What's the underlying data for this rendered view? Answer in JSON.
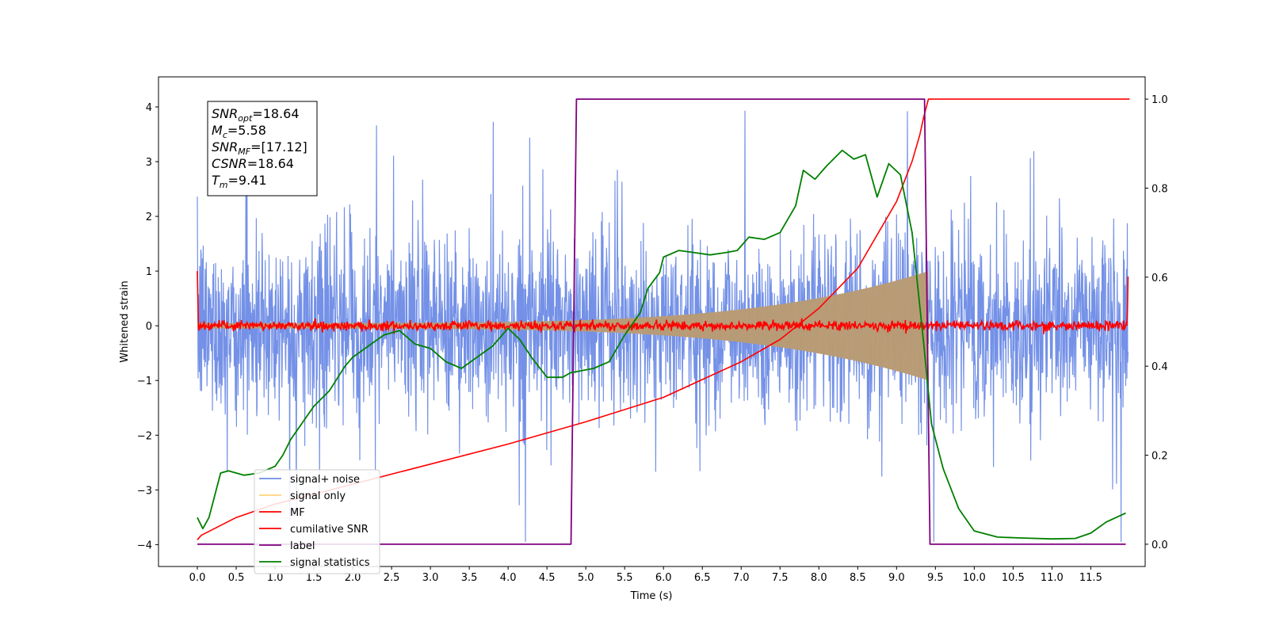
{
  "chart_data": {
    "type": "line",
    "xlabel": "Time (s)",
    "ylabel": "Whitened strain",
    "xlim": [
      -0.5,
      12.2
    ],
    "ylim_left": [
      -4.4,
      4.55
    ],
    "ylim_right": [
      -0.05,
      1.05
    ],
    "x_ticks": [
      0.0,
      0.5,
      1.0,
      1.5,
      2.0,
      2.5,
      3.0,
      3.5,
      4.0,
      4.5,
      5.0,
      5.5,
      6.0,
      6.5,
      7.0,
      7.5,
      8.0,
      8.5,
      9.0,
      9.5,
      10.0,
      10.5,
      11.0,
      11.5
    ],
    "x_tick_labels": [
      "0.0",
      "0.5",
      "1.0",
      "1.5",
      "2.0",
      "2.5",
      "3.0",
      "3.5",
      "4.0",
      "4.5",
      "5.0",
      "5.5",
      "6.0",
      "6.5",
      "7.0",
      "7.5",
      "8.0",
      "8.5",
      "9.0",
      "9.5",
      "10.0",
      "10.5",
      "11.0",
      "11.5"
    ],
    "y_left_ticks": [
      4,
      3,
      2,
      1,
      0,
      -1,
      -2,
      -3,
      -4
    ],
    "y_left_tick_labels": [
      "4",
      "3",
      "2",
      "1",
      "0",
      "−1",
      "−2",
      "−3",
      "−4"
    ],
    "y_right_ticks": [
      1.0,
      0.8,
      0.6,
      0.4,
      0.2,
      0.0
    ],
    "y_right_tick_labels": [
      "1.0",
      "0.8",
      "0.6",
      "0.4",
      "0.2",
      "0.0"
    ],
    "grid": false,
    "legend_position": "lower-left",
    "series": [
      {
        "name": "signal+ noise",
        "axis": "left",
        "color": "#6d8be6",
        "kind": "noise",
        "t_start": 0.0,
        "t_end": 11.98,
        "typical_range": [
          -1.5,
          1.6
        ],
        "peak_range": [
          -3.95,
          4.2
        ]
      },
      {
        "name": "signal only",
        "axis": "left",
        "color": "#ffd27a",
        "kind": "chirp-envelope",
        "t_start": 0.0,
        "t_end": 9.41,
        "envelope_start": 0.05,
        "envelope_end": 1.0,
        "fill_color": "#b99b74"
      },
      {
        "name": "MF",
        "axis": "left",
        "color": "#ff0000",
        "kind": "noise",
        "t_start": 0.0,
        "t_end": 11.98,
        "typical_range": [
          -0.1,
          0.1
        ],
        "edge_values": [
          1.0,
          0.9
        ]
      },
      {
        "name": "cumilative SNR",
        "axis": "right",
        "color": "#ff0000",
        "kind": "curve",
        "x": [
          0.0,
          0.05,
          0.5,
          1.0,
          2.0,
          3.0,
          4.0,
          5.0,
          6.0,
          7.0,
          7.5,
          8.0,
          8.5,
          9.0,
          9.2,
          9.3,
          9.35,
          9.41,
          12.0
        ],
        "y": [
          0.01,
          0.02,
          0.06,
          0.09,
          0.135,
          0.18,
          0.225,
          0.275,
          0.33,
          0.41,
          0.46,
          0.53,
          0.62,
          0.77,
          0.86,
          0.92,
          0.96,
          1.0,
          1.0
        ]
      },
      {
        "name": "label",
        "axis": "right",
        "color": "#800080",
        "kind": "step",
        "x": [
          0.0,
          4.81,
          4.88,
          9.36,
          9.43,
          11.95
        ],
        "y": [
          0.0,
          0.0,
          1.0,
          1.0,
          0.0,
          0.0
        ]
      },
      {
        "name": "signal statistics",
        "axis": "right",
        "color": "#008000",
        "kind": "curve",
        "x": [
          0.0,
          0.07,
          0.15,
          0.3,
          0.4,
          0.5,
          0.6,
          0.8,
          1.0,
          1.1,
          1.2,
          1.3,
          1.5,
          1.7,
          1.9,
          2.0,
          2.2,
          2.4,
          2.6,
          2.8,
          3.0,
          3.2,
          3.4,
          3.6,
          3.8,
          4.0,
          4.15,
          4.3,
          4.5,
          4.7,
          4.8,
          4.95,
          5.1,
          5.3,
          5.5,
          5.7,
          5.8,
          5.95,
          6.0,
          6.2,
          6.4,
          6.6,
          6.8,
          6.95,
          7.1,
          7.3,
          7.5,
          7.7,
          7.8,
          7.95,
          8.1,
          8.3,
          8.45,
          8.6,
          8.75,
          8.9,
          9.05,
          9.2,
          9.35,
          9.45,
          9.6,
          9.8,
          10.0,
          10.3,
          10.6,
          11.0,
          11.3,
          11.5,
          11.7,
          11.95
        ],
        "y": [
          0.06,
          0.035,
          0.06,
          0.16,
          0.165,
          0.16,
          0.155,
          0.16,
          0.175,
          0.2,
          0.235,
          0.26,
          0.31,
          0.345,
          0.4,
          0.42,
          0.445,
          0.47,
          0.48,
          0.45,
          0.44,
          0.41,
          0.395,
          0.42,
          0.445,
          0.485,
          0.46,
          0.42,
          0.375,
          0.375,
          0.385,
          0.39,
          0.395,
          0.41,
          0.47,
          0.52,
          0.575,
          0.61,
          0.645,
          0.66,
          0.655,
          0.65,
          0.655,
          0.66,
          0.69,
          0.685,
          0.7,
          0.76,
          0.84,
          0.82,
          0.85,
          0.885,
          0.865,
          0.875,
          0.78,
          0.855,
          0.83,
          0.7,
          0.45,
          0.27,
          0.17,
          0.08,
          0.03,
          0.016,
          0.014,
          0.012,
          0.013,
          0.025,
          0.05,
          0.07
        ]
      }
    ],
    "annotations": [
      {
        "main": "SNR",
        "sub": "opt",
        "value": "=18.64"
      },
      {
        "main": "M",
        "sub": "c",
        "value": "=5.58"
      },
      {
        "main": "SNR",
        "sub": "MF",
        "value": "=[17.12]"
      },
      {
        "main": "CSNR",
        "sub": "",
        "value": "=18.64"
      },
      {
        "main": "T",
        "sub": "m",
        "value": "=9.41"
      }
    ]
  }
}
